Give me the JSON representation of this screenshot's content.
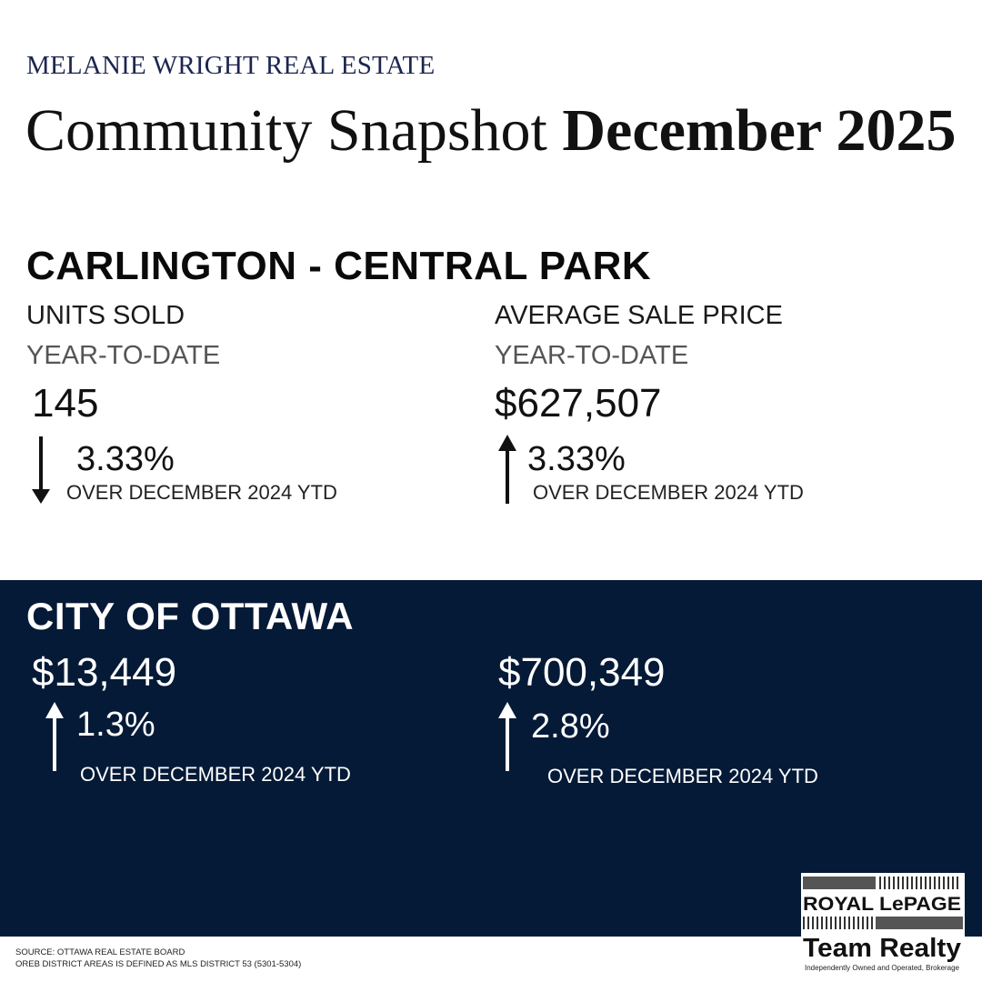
{
  "brand": "MELANIE WRIGHT REAL ESTATE",
  "title": {
    "regular": "Community Snapshot",
    "bold": "December 2025"
  },
  "neighbourhood": {
    "name": "CARLINGTON - CENTRAL PARK",
    "units": {
      "label": "UNITS SOLD",
      "period": "YEAR-TO-DATE",
      "value": "145",
      "change": "3.33%",
      "direction": "down",
      "comparison": "OVER DECEMBER 2024 YTD"
    },
    "price": {
      "label": "AVERAGE SALE PRICE",
      "period": "YEAR-TO-DATE",
      "value": "$627,507",
      "change": "3.33%",
      "direction": "up",
      "comparison": "OVER DECEMBER 2024 YTD"
    }
  },
  "city": {
    "name": "CITY OF OTTAWA",
    "units": {
      "value": "$13,449",
      "change": "1.3%",
      "direction": "up",
      "comparison": "OVER DECEMBER 2024 YTD"
    },
    "price": {
      "value": "$700,349",
      "change": "2.8%",
      "direction": "up",
      "comparison": "OVER DECEMBER 2024 YTD"
    }
  },
  "footer": {
    "source": "SOURCE: OTTAWA REAL ESTATE BOARD",
    "district_note": "OREB DISTRICT AREAS IS DEFINED AS MLS DISTRICT 53 (5301-5304)"
  },
  "logo": {
    "line1": "ROYAL LePAGE",
    "line2": "Team Realty",
    "tagline": "Independently Owned and Operated, Brokerage"
  },
  "colors": {
    "navy": "#051a37",
    "brand_text": "#1c2550",
    "white": "#ffffff"
  }
}
